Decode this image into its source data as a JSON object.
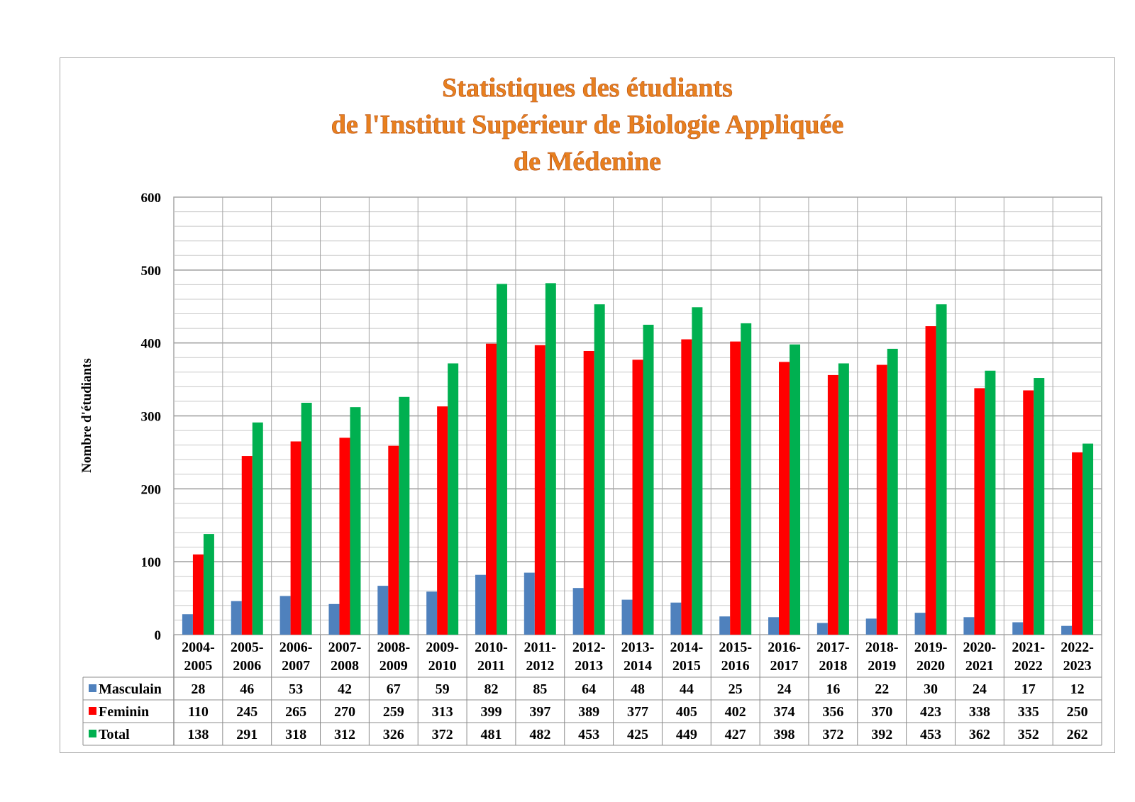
{
  "chart_data": {
    "type": "bar",
    "title": [
      "Statistiques des étudiants",
      "de l'Institut Supérieur de Biologie Appliquée",
      "de Médenine"
    ],
    "ylabel": "Nombre d'étudiants",
    "xlabel": "",
    "ylim": [
      0,
      600
    ],
    "yticks": [
      0,
      100,
      200,
      300,
      400,
      500,
      600
    ],
    "grid": true,
    "legend": "data-table-left",
    "categories": [
      [
        "2004-",
        "2005"
      ],
      [
        "2005-",
        "2006"
      ],
      [
        "2006-",
        "2007"
      ],
      [
        "2007-",
        "2008"
      ],
      [
        "2008-",
        "2009"
      ],
      [
        "2009-",
        "2010"
      ],
      [
        "2010-",
        "2011"
      ],
      [
        "2011-",
        "2012"
      ],
      [
        "2012-",
        "2013"
      ],
      [
        "2013-",
        "2014"
      ],
      [
        "2014-",
        "2015"
      ],
      [
        "2015-",
        "2016"
      ],
      [
        "2016-",
        "2017"
      ],
      [
        "2017-",
        "2018"
      ],
      [
        "2018-",
        "2019"
      ],
      [
        "2019-",
        "2020"
      ],
      [
        "2020-",
        "2021"
      ],
      [
        "2021-",
        "2022"
      ],
      [
        "2022-",
        "2023"
      ]
    ],
    "series": [
      {
        "name": "Masculain",
        "color": "#4f81bd",
        "values": [
          28,
          46,
          53,
          42,
          67,
          59,
          82,
          85,
          64,
          48,
          44,
          25,
          24,
          16,
          22,
          30,
          24,
          17,
          12
        ]
      },
      {
        "name": "Feminin",
        "color": "#ff0000",
        "values": [
          110,
          245,
          265,
          270,
          259,
          313,
          399,
          397,
          389,
          377,
          405,
          402,
          374,
          356,
          370,
          423,
          338,
          335,
          250
        ]
      },
      {
        "name": "Total",
        "color": "#00b050",
        "values": [
          138,
          291,
          318,
          312,
          326,
          372,
          481,
          482,
          453,
          425,
          449,
          427,
          398,
          372,
          392,
          453,
          362,
          352,
          262
        ]
      }
    ]
  }
}
